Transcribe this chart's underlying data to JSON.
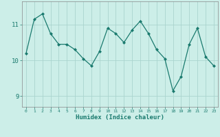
{
  "x": [
    0,
    1,
    2,
    3,
    4,
    5,
    6,
    7,
    8,
    9,
    10,
    11,
    12,
    13,
    14,
    15,
    16,
    17,
    18,
    19,
    20,
    21,
    22,
    23
  ],
  "y": [
    10.2,
    11.15,
    11.3,
    10.75,
    10.45,
    10.45,
    10.3,
    10.05,
    9.85,
    10.25,
    10.9,
    10.75,
    10.5,
    10.85,
    11.1,
    10.75,
    10.3,
    10.05,
    9.15,
    9.55,
    10.45,
    10.9,
    10.1,
    9.85
  ],
  "line_color": "#1a7a6e",
  "marker": "D",
  "marker_size": 2,
  "bg_color": "#cceee8",
  "grid_color": "#aad4ce",
  "xlabel": "Humidex (Indice chaleur)",
  "ylim": [
    8.7,
    11.65
  ],
  "xlim": [
    -0.5,
    23.5
  ],
  "yticks": [
    9,
    10,
    11
  ],
  "xticks": [
    0,
    1,
    2,
    3,
    4,
    5,
    6,
    7,
    8,
    9,
    10,
    11,
    12,
    13,
    14,
    15,
    16,
    17,
    18,
    19,
    20,
    21,
    22,
    23
  ],
  "tick_color": "#1a7a6e",
  "label_color": "#1a7a6e",
  "spine_color": "#888888"
}
